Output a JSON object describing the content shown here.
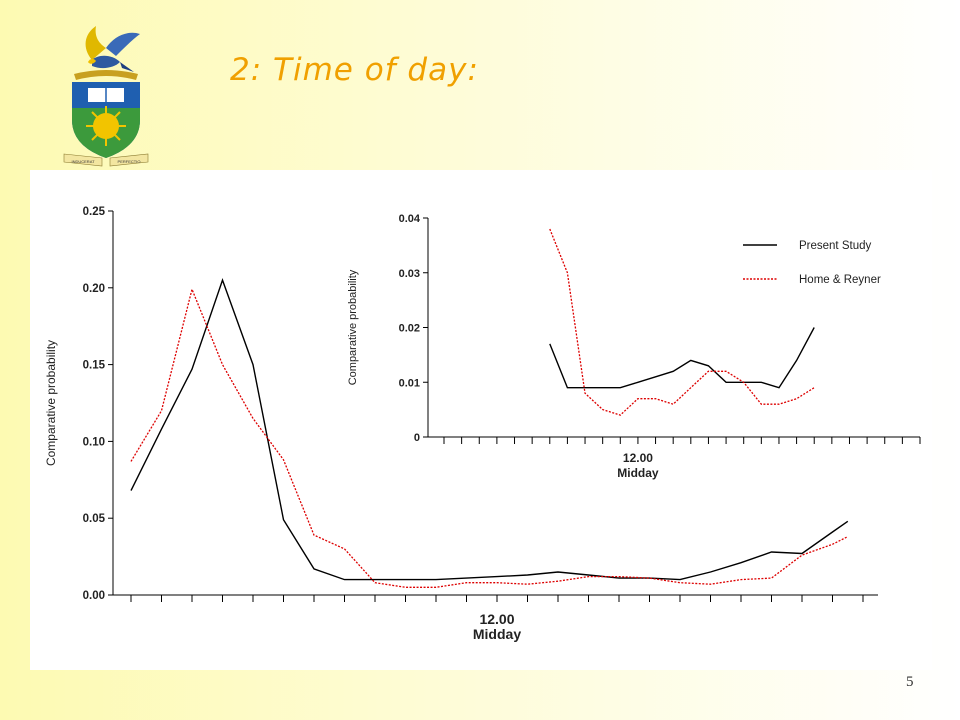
{
  "slide": {
    "title": "2: Time of day:",
    "page_number": "5",
    "logo": {
      "emblem": "university-crest",
      "motto_left": "INDUCERAT",
      "motto_right": "PERFECTIO"
    }
  },
  "colors": {
    "present_study": "#000000",
    "home_reyner": "#dd0000",
    "title": "#f0a000"
  },
  "chart_data": [
    {
      "type": "line",
      "ylabel": "Comparative probability",
      "xlabel_top": "12.00",
      "xlabel_bottom": "Midday",
      "ylim": [
        0,
        0.25
      ],
      "yticks": [
        "0.00",
        "0.05",
        "0.10",
        "0.15",
        "0.20",
        "0.25"
      ],
      "ytick_values": [
        0,
        0.05,
        0.1,
        0.15,
        0.2,
        0.25
      ],
      "xlim": [
        1,
        25
      ],
      "x_midday": 13,
      "grid": false,
      "series": [
        {
          "key": "present",
          "x": [
            1,
            2,
            3,
            4,
            5,
            6,
            7,
            8,
            9,
            10,
            11,
            12,
            13,
            14,
            15,
            16,
            17,
            18,
            19,
            20,
            21,
            22,
            23,
            24,
            24.5
          ],
          "y": [
            0.068,
            0.108,
            0.147,
            0.205,
            0.15,
            0.049,
            0.017,
            0.01,
            0.01,
            0.01,
            0.01,
            0.011,
            0.012,
            0.013,
            0.015,
            0.013,
            0.011,
            0.011,
            0.01,
            0.015,
            0.021,
            0.028,
            0.027,
            0.041,
            0.048
          ]
        },
        {
          "key": "home",
          "x": [
            1,
            2,
            3,
            4,
            5,
            6,
            7,
            8,
            9,
            10,
            11,
            12,
            13,
            14,
            15,
            16,
            17,
            18,
            19,
            20,
            21,
            22,
            23,
            24,
            24.5
          ],
          "y": [
            0.087,
            0.12,
            0.199,
            0.15,
            0.115,
            0.088,
            0.039,
            0.03,
            0.008,
            0.005,
            0.005,
            0.008,
            0.008,
            0.007,
            0.009,
            0.012,
            0.012,
            0.011,
            0.008,
            0.007,
            0.01,
            0.011,
            0.026,
            0.033,
            0.038
          ]
        }
      ]
    },
    {
      "type": "line",
      "ylabel": "Comparative probability",
      "xlabel_top": "12.00",
      "xlabel_bottom": "Midday",
      "ylim": [
        0,
        0.04
      ],
      "yticks": [
        "0",
        "0.01",
        "0.02",
        "0.03",
        "0.04"
      ],
      "ytick_values": [
        0,
        0.01,
        0.02,
        0.03,
        0.04
      ],
      "xlim": [
        1,
        28
      ],
      "x_midday": 12,
      "grid": false,
      "legend": {
        "placement": "top-right",
        "items": [
          {
            "key": "present",
            "label": "Present Study"
          },
          {
            "key": "home",
            "label": "Home & Reyner"
          }
        ]
      },
      "series": [
        {
          "key": "present",
          "x": [
            7,
            8,
            9,
            10,
            11,
            12,
            13,
            14,
            15,
            16,
            17,
            18,
            19,
            20,
            21,
            22
          ],
          "y": [
            0.017,
            0.009,
            0.009,
            0.009,
            0.009,
            0.01,
            0.011,
            0.012,
            0.014,
            0.013,
            0.01,
            0.01,
            0.01,
            0.009,
            0.014,
            0.02
          ]
        },
        {
          "key": "home",
          "x": [
            7,
            8,
            9,
            10,
            11,
            12,
            13,
            14,
            15,
            16,
            17,
            18,
            19,
            20,
            21,
            22
          ],
          "y": [
            0.038,
            0.03,
            0.008,
            0.005,
            0.004,
            0.007,
            0.007,
            0.006,
            0.009,
            0.012,
            0.012,
            0.01,
            0.006,
            0.006,
            0.007,
            0.009
          ]
        }
      ]
    }
  ]
}
